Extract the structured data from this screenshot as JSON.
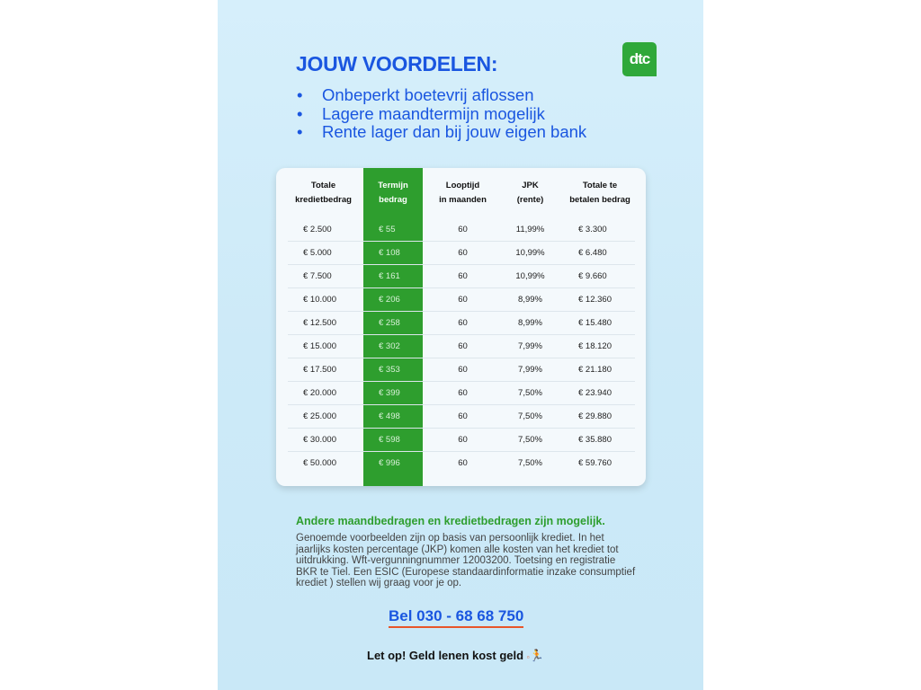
{
  "title": "JOUW VOORDELEN:",
  "logo": "dtc",
  "bullets": [
    "Onbeperkt boetevrij aflossen",
    "Lagere maandtermijn mogelijk",
    "Rente lager dan bij jouw eigen bank"
  ],
  "table": {
    "headers": [
      [
        "Totale",
        "kredietbedrag"
      ],
      [
        "Termijn",
        "bedrag"
      ],
      [
        "Looptijd",
        "in maanden"
      ],
      [
        "JPK",
        "(rente)"
      ],
      [
        "Totale te",
        "betalen bedrag"
      ]
    ],
    "rows": [
      [
        "€ 2.500",
        "€ 55",
        "60",
        "11,99%",
        "€ 3.300"
      ],
      [
        "€ 5.000",
        "€ 108",
        "60",
        "10,99%",
        "€ 6.480"
      ],
      [
        "€ 7.500",
        "€ 161",
        "60",
        "10,99%",
        "€ 9.660"
      ],
      [
        "€ 10.000",
        "€ 206",
        "60",
        "8,99%",
        "€ 12.360"
      ],
      [
        "€ 12.500",
        "€ 258",
        "60",
        "8,99%",
        "€ 15.480"
      ],
      [
        "€ 15.000",
        "€ 302",
        "60",
        "7,99%",
        "€ 18.120"
      ],
      [
        "€ 17.500",
        "€ 353",
        "60",
        "7,99%",
        "€ 21.180"
      ],
      [
        "€ 20.000",
        "€ 399",
        "60",
        "7,50%",
        "€ 23.940"
      ],
      [
        "€ 25.000",
        "€ 498",
        "60",
        "7,50%",
        "€ 29.880"
      ],
      [
        "€ 30.000",
        "€ 598",
        "60",
        "7,50%",
        "€ 35.880"
      ],
      [
        "€ 50.000",
        "€ 996",
        "60",
        "7,50%",
        "€ 59.760"
      ]
    ]
  },
  "footer": {
    "highlight": "Andere maandbedragen en kredietbedragen zijn mogelijk.",
    "disclaimer": "Genoemde voorbeelden zijn op basis van persoonlijk krediet. In het jaarlijks kosten percentage (JKP) komen alle kosten van het krediet tot uitdrukking. Wft-vergunningnummer 12003200. Toetsing en registratie BKR te Tiel. Een ESIC (Europese standaardinformatie inzake consumptief krediet ) stellen wij graag voor je op.",
    "phone": "Bel 030 - 68 68 750",
    "warning": "Let op! Geld lenen kost geld"
  },
  "colors": {
    "blue": "#1a56e0",
    "green": "#2e9e2e",
    "orange": "#e8552a"
  }
}
